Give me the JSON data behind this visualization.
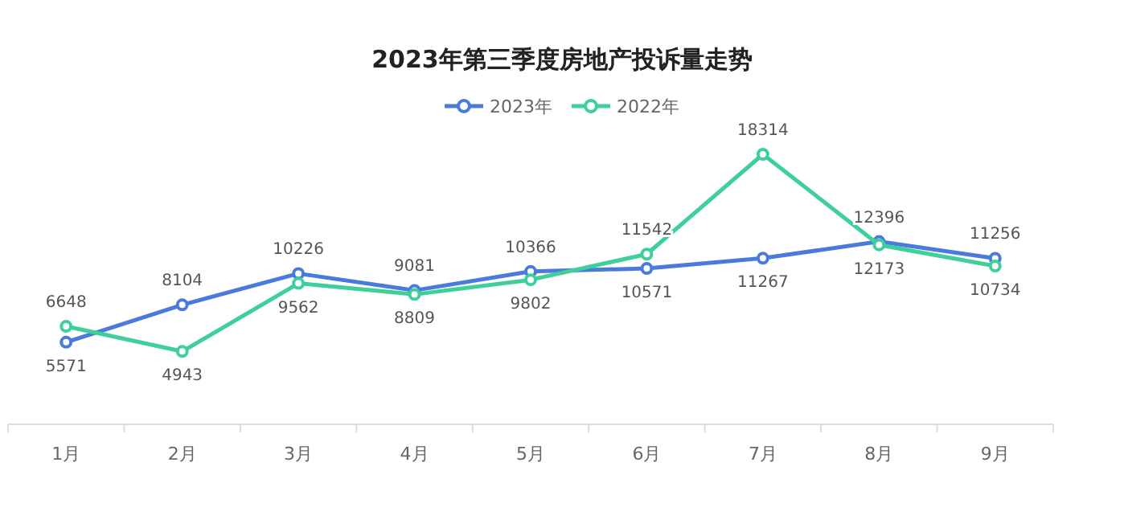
{
  "chart_data": {
    "type": "line",
    "title": "2023年第三季度房地产投诉量走势",
    "categories": [
      "1月",
      "2月",
      "3月",
      "4月",
      "5月",
      "6月",
      "7月",
      "8月",
      "9月"
    ],
    "series": [
      {
        "name": "2023年",
        "color": "#4a7bdc",
        "values": [
          5571,
          8104,
          10226,
          9081,
          10366,
          10571,
          11267,
          12396,
          11256
        ]
      },
      {
        "name": "2022年",
        "color": "#3ecf9a",
        "values": [
          6648,
          4943,
          9562,
          8809,
          9802,
          11542,
          18314,
          12173,
          10734
        ]
      }
    ],
    "tick_labels": "x",
    "data_labels": true,
    "legend": "top",
    "marker": "circle",
    "line_style": "solid",
    "grid": false
  }
}
